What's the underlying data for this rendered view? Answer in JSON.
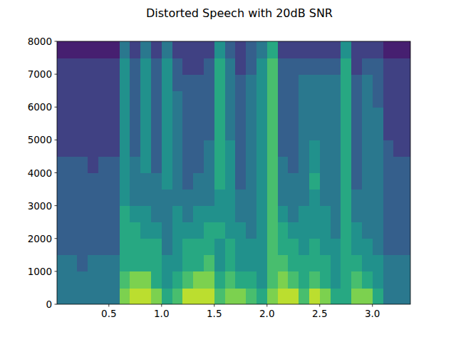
{
  "chart_data": {
    "type": "heatmap",
    "title": "Distorted Speech with 20dB SNR",
    "xlim": [
      0.008,
      3.36
    ],
    "ylim": [
      0,
      8000
    ],
    "xticks": [
      0.5,
      {
        "value": 1,
        "label": "1.0"
      },
      1.5,
      {
        "value": 2,
        "label": "2.0"
      },
      2.5,
      {
        "value": 3,
        "label": "3.0"
      }
    ],
    "yticks": [
      0,
      1000,
      2000,
      3000,
      4000,
      5000,
      6000,
      7000,
      8000
    ],
    "zlim": [
      0,
      10
    ],
    "x_edges": [
      0.008,
      0.1,
      0.2,
      0.3,
      0.4,
      0.5,
      0.6,
      0.7,
      0.8,
      0.9,
      1.0,
      1.1,
      1.2,
      1.3,
      1.4,
      1.5,
      1.6,
      1.7,
      1.8,
      1.9,
      2.0,
      2.1,
      2.2,
      2.3,
      2.4,
      2.5,
      2.6,
      2.7,
      2.8,
      2.9,
      3.0,
      3.1,
      3.2,
      3.3,
      3.36
    ],
    "y_edges": [
      0,
      500,
      1000,
      1500,
      2000,
      2500,
      3000,
      3500,
      4000,
      4500,
      5000,
      5500,
      6000,
      6500,
      7000,
      7500,
      8000
    ],
    "cells": [
      [
        4,
        4,
        4,
        3,
        3,
        3,
        3,
        3,
        3,
        2,
        2,
        2,
        2,
        2,
        2,
        1
      ],
      [
        4,
        4,
        4,
        3,
        3,
        3,
        3,
        3,
        3,
        2,
        2,
        2,
        2,
        2,
        2,
        1
      ],
      [
        4,
        4,
        3,
        3,
        3,
        3,
        3,
        3,
        3,
        2,
        2,
        2,
        2,
        2,
        2,
        1
      ],
      [
        4,
        4,
        4,
        3,
        3,
        3,
        3,
        3,
        2,
        2,
        2,
        2,
        2,
        2,
        2,
        1
      ],
      [
        4,
        4,
        4,
        3,
        3,
        3,
        3,
        3,
        3,
        2,
        2,
        2,
        2,
        2,
        2,
        1
      ],
      [
        4,
        4,
        4,
        3,
        3,
        3,
        3,
        3,
        3,
        2,
        2,
        2,
        2,
        2,
        2,
        1
      ],
      [
        8,
        7,
        6,
        6,
        6,
        6,
        5,
        5,
        5,
        5,
        5,
        5,
        5,
        5,
        5,
        4
      ],
      [
        9,
        8,
        6,
        6,
        6,
        5,
        4,
        4,
        4,
        3,
        3,
        3,
        3,
        3,
        3,
        2
      ],
      [
        9,
        8,
        6,
        6,
        5,
        5,
        4,
        4,
        5,
        5,
        5,
        5,
        5,
        5,
        5,
        4
      ],
      [
        8,
        6,
        6,
        6,
        5,
        4,
        4,
        4,
        3,
        3,
        3,
        3,
        3,
        3,
        3,
        2
      ],
      [
        6,
        5,
        5,
        4,
        4,
        4,
        4,
        5,
        5,
        5,
        5,
        5,
        5,
        5,
        5,
        4
      ],
      [
        7,
        6,
        5,
        5,
        5,
        5,
        4,
        4,
        4,
        4,
        4,
        4,
        4,
        3,
        3,
        2
      ],
      [
        9,
        7,
        6,
        6,
        5,
        4,
        4,
        3,
        3,
        3,
        3,
        3,
        3,
        3,
        2,
        2
      ],
      [
        9,
        8,
        6,
        6,
        5,
        5,
        4,
        4,
        3,
        3,
        3,
        3,
        3,
        3,
        2,
        2
      ],
      [
        9,
        8,
        7,
        6,
        6,
        5,
        4,
        4,
        4,
        4,
        3,
        3,
        3,
        3,
        3,
        2
      ],
      [
        7,
        6,
        5,
        5,
        6,
        5,
        5,
        6,
        6,
        6,
        6,
        6,
        6,
        6,
        6,
        5
      ],
      [
        8,
        7,
        6,
        6,
        5,
        5,
        5,
        5,
        5,
        5,
        4,
        4,
        4,
        4,
        4,
        3
      ],
      [
        8,
        6,
        5,
        5,
        5,
        4,
        4,
        3,
        3,
        3,
        3,
        3,
        3,
        3,
        2,
        2
      ],
      [
        7,
        6,
        5,
        5,
        4,
        4,
        4,
        4,
        4,
        4,
        4,
        4,
        4,
        4,
        3,
        3
      ],
      [
        6,
        5,
        5,
        5,
        5,
        5,
        5,
        5,
        5,
        5,
        5,
        5,
        5,
        5,
        5,
        4
      ],
      [
        8,
        7,
        7,
        7,
        7,
        7,
        7,
        7,
        7,
        7,
        7,
        7,
        7,
        7,
        7,
        6
      ],
      [
        9,
        8,
        7,
        6,
        6,
        5,
        4,
        4,
        4,
        3,
        3,
        3,
        3,
        3,
        3,
        2
      ],
      [
        9,
        7,
        6,
        6,
        5,
        4,
        4,
        4,
        3,
        3,
        3,
        3,
        3,
        3,
        3,
        2
      ],
      [
        7,
        6,
        6,
        5,
        5,
        5,
        4,
        4,
        4,
        4,
        4,
        4,
        4,
        4,
        3,
        2
      ],
      [
        9,
        7,
        6,
        6,
        5,
        5,
        5,
        6,
        5,
        5,
        4,
        4,
        4,
        4,
        3,
        2
      ],
      [
        8,
        6,
        6,
        5,
        5,
        5,
        4,
        4,
        4,
        4,
        4,
        4,
        4,
        4,
        3,
        2
      ],
      [
        6,
        5,
        5,
        5,
        4,
        4,
        4,
        4,
        4,
        4,
        4,
        4,
        4,
        4,
        3,
        2
      ],
      [
        6,
        6,
        6,
        6,
        6,
        6,
        6,
        6,
        6,
        6,
        6,
        6,
        6,
        6,
        6,
        5
      ],
      [
        8,
        7,
        6,
        5,
        5,
        4,
        4,
        3,
        3,
        3,
        3,
        3,
        3,
        3,
        2,
        2
      ],
      [
        8,
        6,
        5,
        5,
        4,
        4,
        4,
        4,
        4,
        4,
        4,
        4,
        4,
        4,
        3,
        2
      ],
      [
        6,
        5,
        5,
        4,
        4,
        4,
        4,
        4,
        4,
        4,
        4,
        4,
        3,
        3,
        3,
        2
      ],
      [
        4,
        4,
        4,
        3,
        3,
        3,
        3,
        3,
        3,
        3,
        2,
        2,
        2,
        2,
        2,
        1
      ],
      [
        4,
        4,
        4,
        3,
        3,
        3,
        3,
        3,
        3,
        2,
        2,
        2,
        2,
        2,
        2,
        1
      ],
      [
        4,
        4,
        4,
        3,
        3,
        3,
        3,
        3,
        3,
        2,
        2,
        2,
        2,
        2,
        2,
        1
      ]
    ]
  }
}
